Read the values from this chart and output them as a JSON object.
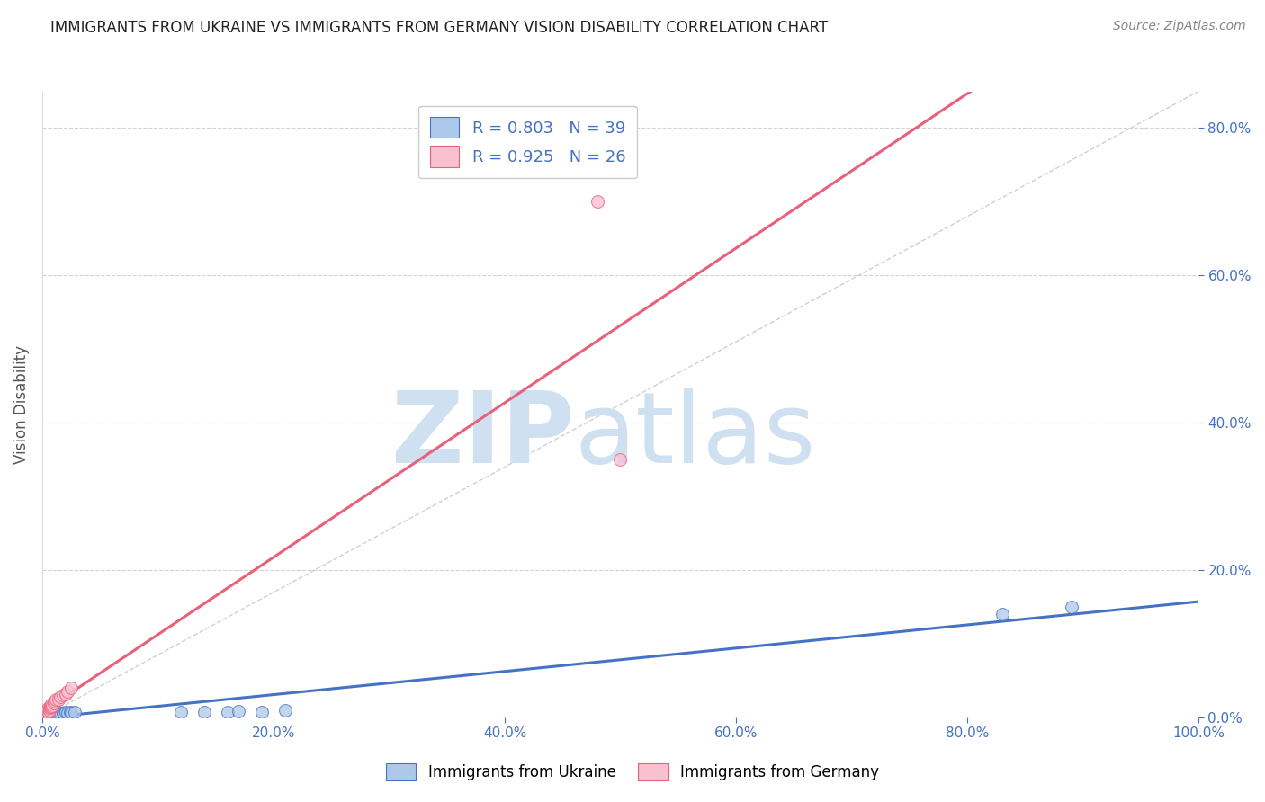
{
  "title": "IMMIGRANTS FROM UKRAINE VS IMMIGRANTS FROM GERMANY VISION DISABILITY CORRELATION CHART",
  "source": "Source: ZipAtlas.com",
  "ylabel": "Vision Disability",
  "r_ukraine": 0.803,
  "n_ukraine": 39,
  "r_germany": 0.925,
  "n_germany": 26,
  "ukraine_color": "#adc8e8",
  "ukraine_line_color": "#4472c4",
  "germany_color": "#f9c0d0",
  "germany_line_color": "#e8607a",
  "ukraine_scatter_x": [
    0.001,
    0.002,
    0.002,
    0.003,
    0.003,
    0.004,
    0.004,
    0.005,
    0.005,
    0.006,
    0.006,
    0.007,
    0.007,
    0.008,
    0.008,
    0.009,
    0.01,
    0.01,
    0.011,
    0.012,
    0.013,
    0.014,
    0.015,
    0.016,
    0.018,
    0.019,
    0.02,
    0.022,
    0.024,
    0.025,
    0.028,
    0.12,
    0.14,
    0.16,
    0.17,
    0.19,
    0.21,
    0.83,
    0.89
  ],
  "ukraine_scatter_y": [
    0.001,
    0.001,
    0.002,
    0.001,
    0.002,
    0.002,
    0.003,
    0.002,
    0.003,
    0.002,
    0.003,
    0.003,
    0.004,
    0.003,
    0.004,
    0.004,
    0.003,
    0.005,
    0.004,
    0.005,
    0.005,
    0.004,
    0.006,
    0.005,
    0.006,
    0.005,
    0.007,
    0.006,
    0.007,
    0.006,
    0.008,
    0.008,
    0.007,
    0.008,
    0.009,
    0.008,
    0.01,
    0.14,
    0.15
  ],
  "germany_scatter_x": [
    0.001,
    0.002,
    0.003,
    0.003,
    0.004,
    0.004,
    0.005,
    0.005,
    0.006,
    0.006,
    0.007,
    0.007,
    0.008,
    0.008,
    0.009,
    0.01,
    0.011,
    0.012,
    0.014,
    0.016,
    0.018,
    0.02,
    0.022,
    0.025,
    0.48,
    0.5
  ],
  "germany_scatter_y": [
    0.003,
    0.005,
    0.004,
    0.008,
    0.006,
    0.01,
    0.009,
    0.012,
    0.01,
    0.014,
    0.013,
    0.016,
    0.015,
    0.018,
    0.016,
    0.02,
    0.022,
    0.024,
    0.025,
    0.028,
    0.03,
    0.032,
    0.035,
    0.04,
    0.7,
    0.35
  ],
  "xlim": [
    0.0,
    1.0
  ],
  "ylim": [
    0.0,
    0.85
  ],
  "xtick_vals": [
    0.0,
    0.2,
    0.4,
    0.6,
    0.8,
    1.0
  ],
  "ytick_vals": [
    0.0,
    0.2,
    0.4,
    0.6,
    0.8
  ],
  "background_color": "#ffffff",
  "watermark_zip": "ZIP",
  "watermark_atlas": "atlas",
  "watermark_color_zip": "#cfe0f0",
  "watermark_color_atlas": "#cfe0f0",
  "legend_ukraine_label": "Immigrants from Ukraine",
  "legend_germany_label": "Immigrants from Germany",
  "title_color": "#222222",
  "axis_label_color": "#555555",
  "tick_color": "#4472c4",
  "grid_color": "#cccccc",
  "trendline_dashed_color": "#bbbbbb"
}
